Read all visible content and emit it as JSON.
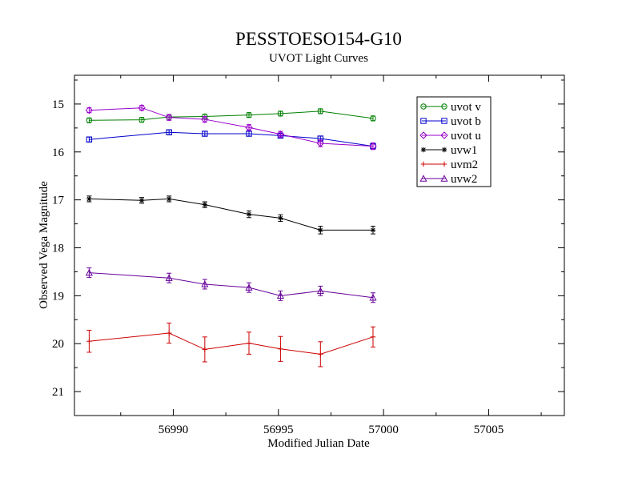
{
  "chart_data": {
    "type": "line",
    "title": "PESSTOESO154-G10",
    "subtitle": "UVOT Light Curves",
    "xlabel": "Modified Julian Date",
    "ylabel": "Observed Vega Magnitude",
    "xlim": [
      56985.3,
      57008.6
    ],
    "ylim": [
      21.5,
      14.4
    ],
    "y_inverted": true,
    "xticks": [
      56990,
      56995,
      57000,
      57005
    ],
    "yticks": [
      15,
      16,
      17,
      18,
      19,
      20,
      21
    ],
    "grid": false,
    "legend_position": "top-right",
    "series": [
      {
        "name": "uvot v",
        "color": "#008000",
        "marker": "circle",
        "x": [
          56986.0,
          56988.5,
          56989.8,
          56991.5,
          56993.6,
          56995.1,
          56997.0,
          56999.5
        ],
        "y": [
          15.34,
          15.33,
          15.27,
          15.26,
          15.23,
          15.2,
          15.15,
          15.3
        ],
        "err": [
          0.05,
          0.05,
          0.05,
          0.05,
          0.05,
          0.05,
          0.05,
          0.05
        ]
      },
      {
        "name": "uvot b",
        "color": "#0000cc",
        "marker": "square",
        "x": [
          56986.0,
          56989.8,
          56991.5,
          56993.6,
          56995.1,
          56997.0,
          56999.5
        ],
        "y": [
          15.74,
          15.59,
          15.62,
          15.62,
          15.66,
          15.72,
          15.88
        ],
        "err": [
          0.05,
          0.05,
          0.05,
          0.05,
          0.05,
          0.05,
          0.05
        ]
      },
      {
        "name": "uvot u",
        "color": "#9900cc",
        "marker": "diamond",
        "x": [
          56986.0,
          56988.5,
          56989.8,
          56991.5,
          56993.6,
          56995.1,
          56997.0,
          56999.5
        ],
        "y": [
          15.13,
          15.08,
          15.28,
          15.32,
          15.49,
          15.63,
          15.82,
          15.88
        ],
        "err": [
          0.05,
          0.05,
          0.06,
          0.06,
          0.06,
          0.06,
          0.07,
          0.07
        ]
      },
      {
        "name": "uvw1",
        "color": "#000000",
        "marker": "asterisk",
        "x": [
          56986.0,
          56988.5,
          56989.8,
          56991.5,
          56993.6,
          56995.1,
          56997.0,
          56999.5
        ],
        "y": [
          16.98,
          17.01,
          16.98,
          17.1,
          17.3,
          17.38,
          17.63,
          17.63
        ],
        "err": [
          0.06,
          0.06,
          0.06,
          0.06,
          0.07,
          0.07,
          0.08,
          0.08
        ]
      },
      {
        "name": "uvm2",
        "color": "#cc0000",
        "marker": "plus",
        "x": [
          56986.0,
          56989.8,
          56991.5,
          56993.6,
          56995.1,
          56997.0,
          56999.5
        ],
        "y": [
          19.95,
          19.78,
          20.12,
          19.99,
          20.11,
          20.22,
          19.86
        ],
        "err": [
          0.23,
          0.21,
          0.26,
          0.23,
          0.26,
          0.26,
          0.21
        ]
      },
      {
        "name": "uvw2",
        "color": "#660099",
        "marker": "triangle",
        "x": [
          56986.0,
          56989.8,
          56991.5,
          56993.6,
          56995.1,
          56997.0,
          56999.5
        ],
        "y": [
          18.52,
          18.63,
          18.76,
          18.83,
          19.0,
          18.9,
          19.04
        ],
        "err": [
          0.1,
          0.1,
          0.1,
          0.1,
          0.1,
          0.1,
          0.1
        ]
      }
    ]
  }
}
